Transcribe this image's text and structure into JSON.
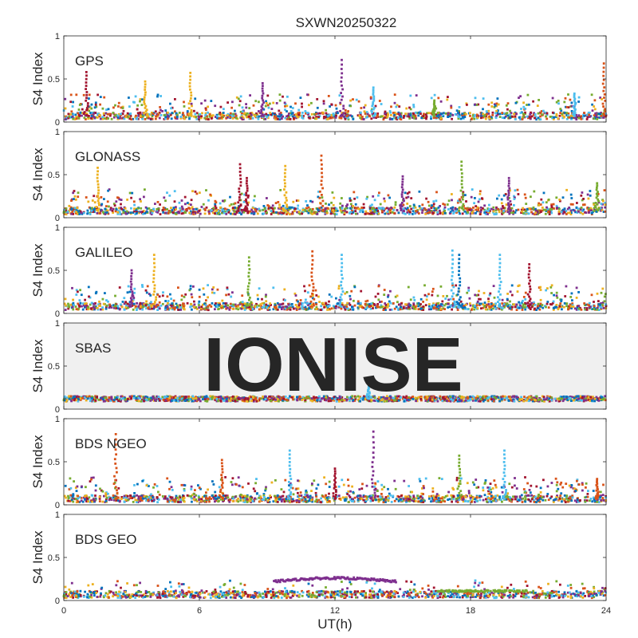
{
  "figure": {
    "title": "SXWN20250322",
    "watermark": "IONISE",
    "xlabel": "UT(h)",
    "ylabel": "S4 Index",
    "colors": {
      "series": [
        "#0072BD",
        "#D95319",
        "#EDB120",
        "#7E2F8E",
        "#77AC30",
        "#4DBEEE",
        "#A2142F"
      ],
      "axes": "#262626",
      "watermark": "#e6e6e6",
      "sbas_bg": "#f0f0f0"
    }
  },
  "chart_data": [
    {
      "type": "scatter",
      "panel_label": "GPS",
      "xlim": [
        0,
        24
      ],
      "ylim": [
        0,
        1
      ],
      "xticks": [],
      "yticks": [
        "0",
        "0.5",
        "1"
      ],
      "baseline_level": 0.07,
      "spikes": [
        {
          "x": 1.0,
          "peak": 0.58,
          "color": 6
        },
        {
          "x": 3.6,
          "peak": 0.47,
          "color": 2
        },
        {
          "x": 5.6,
          "peak": 0.57,
          "color": 2
        },
        {
          "x": 8.8,
          "peak": 0.45,
          "color": 3
        },
        {
          "x": 12.3,
          "peak": 0.72,
          "color": 3
        },
        {
          "x": 13.7,
          "peak": 0.4,
          "color": 5
        },
        {
          "x": 16.4,
          "peak": 0.25,
          "color": 4
        },
        {
          "x": 22.6,
          "peak": 0.33,
          "color": 5
        },
        {
          "x": 23.9,
          "peak": 0.68,
          "color": 1
        }
      ]
    },
    {
      "type": "scatter",
      "panel_label": "GLONASS",
      "xlim": [
        0,
        24
      ],
      "ylim": [
        0,
        1
      ],
      "xticks": [],
      "yticks": [
        "0",
        "0.5",
        "1"
      ],
      "baseline_level": 0.08,
      "spikes": [
        {
          "x": 1.5,
          "peak": 0.58,
          "color": 2
        },
        {
          "x": 7.8,
          "peak": 0.62,
          "color": 6
        },
        {
          "x": 8.1,
          "peak": 0.46,
          "color": 6
        },
        {
          "x": 9.8,
          "peak": 0.6,
          "color": 2
        },
        {
          "x": 11.4,
          "peak": 0.72,
          "color": 1
        },
        {
          "x": 15.0,
          "peak": 0.48,
          "color": 3
        },
        {
          "x": 17.6,
          "peak": 0.65,
          "color": 4
        },
        {
          "x": 19.7,
          "peak": 0.46,
          "color": 3
        },
        {
          "x": 23.6,
          "peak": 0.4,
          "color": 4
        }
      ]
    },
    {
      "type": "scatter",
      "panel_label": "GALILEO",
      "xlim": [
        0,
        24
      ],
      "ylim": [
        0,
        1
      ],
      "xticks": [],
      "yticks": [
        "0",
        "0.5",
        "1"
      ],
      "baseline_level": 0.08,
      "spikes": [
        {
          "x": 3.0,
          "peak": 0.5,
          "color": 3
        },
        {
          "x": 4.0,
          "peak": 0.68,
          "color": 2
        },
        {
          "x": 8.2,
          "peak": 0.65,
          "color": 4
        },
        {
          "x": 11.0,
          "peak": 0.72,
          "color": 1
        },
        {
          "x": 12.3,
          "peak": 0.68,
          "color": 5
        },
        {
          "x": 17.2,
          "peak": 0.73,
          "color": 5
        },
        {
          "x": 17.5,
          "peak": 0.68,
          "color": 0
        },
        {
          "x": 19.3,
          "peak": 0.68,
          "color": 5
        },
        {
          "x": 20.6,
          "peak": 0.57,
          "color": 6
        }
      ]
    },
    {
      "type": "scatter",
      "panel_label": "SBAS",
      "xlim": [
        0,
        24
      ],
      "ylim": [
        0,
        1
      ],
      "xticks": [],
      "yticks": [
        "0",
        "0.5",
        "1"
      ],
      "baseline_level": 0.12,
      "spikes": [
        {
          "x": 13.5,
          "peak": 0.28,
          "color": 5
        }
      ]
    },
    {
      "type": "scatter",
      "panel_label": "BDS NGEO",
      "xlim": [
        0,
        24
      ],
      "ylim": [
        0,
        1
      ],
      "xticks": [],
      "yticks": [
        "0",
        "0.5",
        "1"
      ],
      "baseline_level": 0.07,
      "spikes": [
        {
          "x": 2.3,
          "peak": 0.82,
          "color": 1
        },
        {
          "x": 7.0,
          "peak": 0.52,
          "color": 1
        },
        {
          "x": 10.0,
          "peak": 0.63,
          "color": 5
        },
        {
          "x": 12.0,
          "peak": 0.42,
          "color": 6
        },
        {
          "x": 13.7,
          "peak": 0.85,
          "color": 3
        },
        {
          "x": 17.5,
          "peak": 0.57,
          "color": 4
        },
        {
          "x": 19.5,
          "peak": 0.63,
          "color": 5
        },
        {
          "x": 23.6,
          "peak": 0.3,
          "color": 1
        }
      ]
    },
    {
      "type": "scatter",
      "panel_label": "BDS GEO",
      "xlim": [
        0,
        24
      ],
      "ylim": [
        0,
        1
      ],
      "xticks": [
        "0",
        "6",
        "12",
        "18",
        "24"
      ],
      "yticks": [
        "0",
        "0.5",
        "1"
      ],
      "baseline_level": 0.07,
      "arc": {
        "x_start": 9.3,
        "x_end": 14.7,
        "level": 0.22,
        "color": 3
      },
      "green_band": {
        "x_start": 16.5,
        "x_end": 20.5,
        "level": 0.11,
        "color": 4
      },
      "spikes": []
    }
  ]
}
